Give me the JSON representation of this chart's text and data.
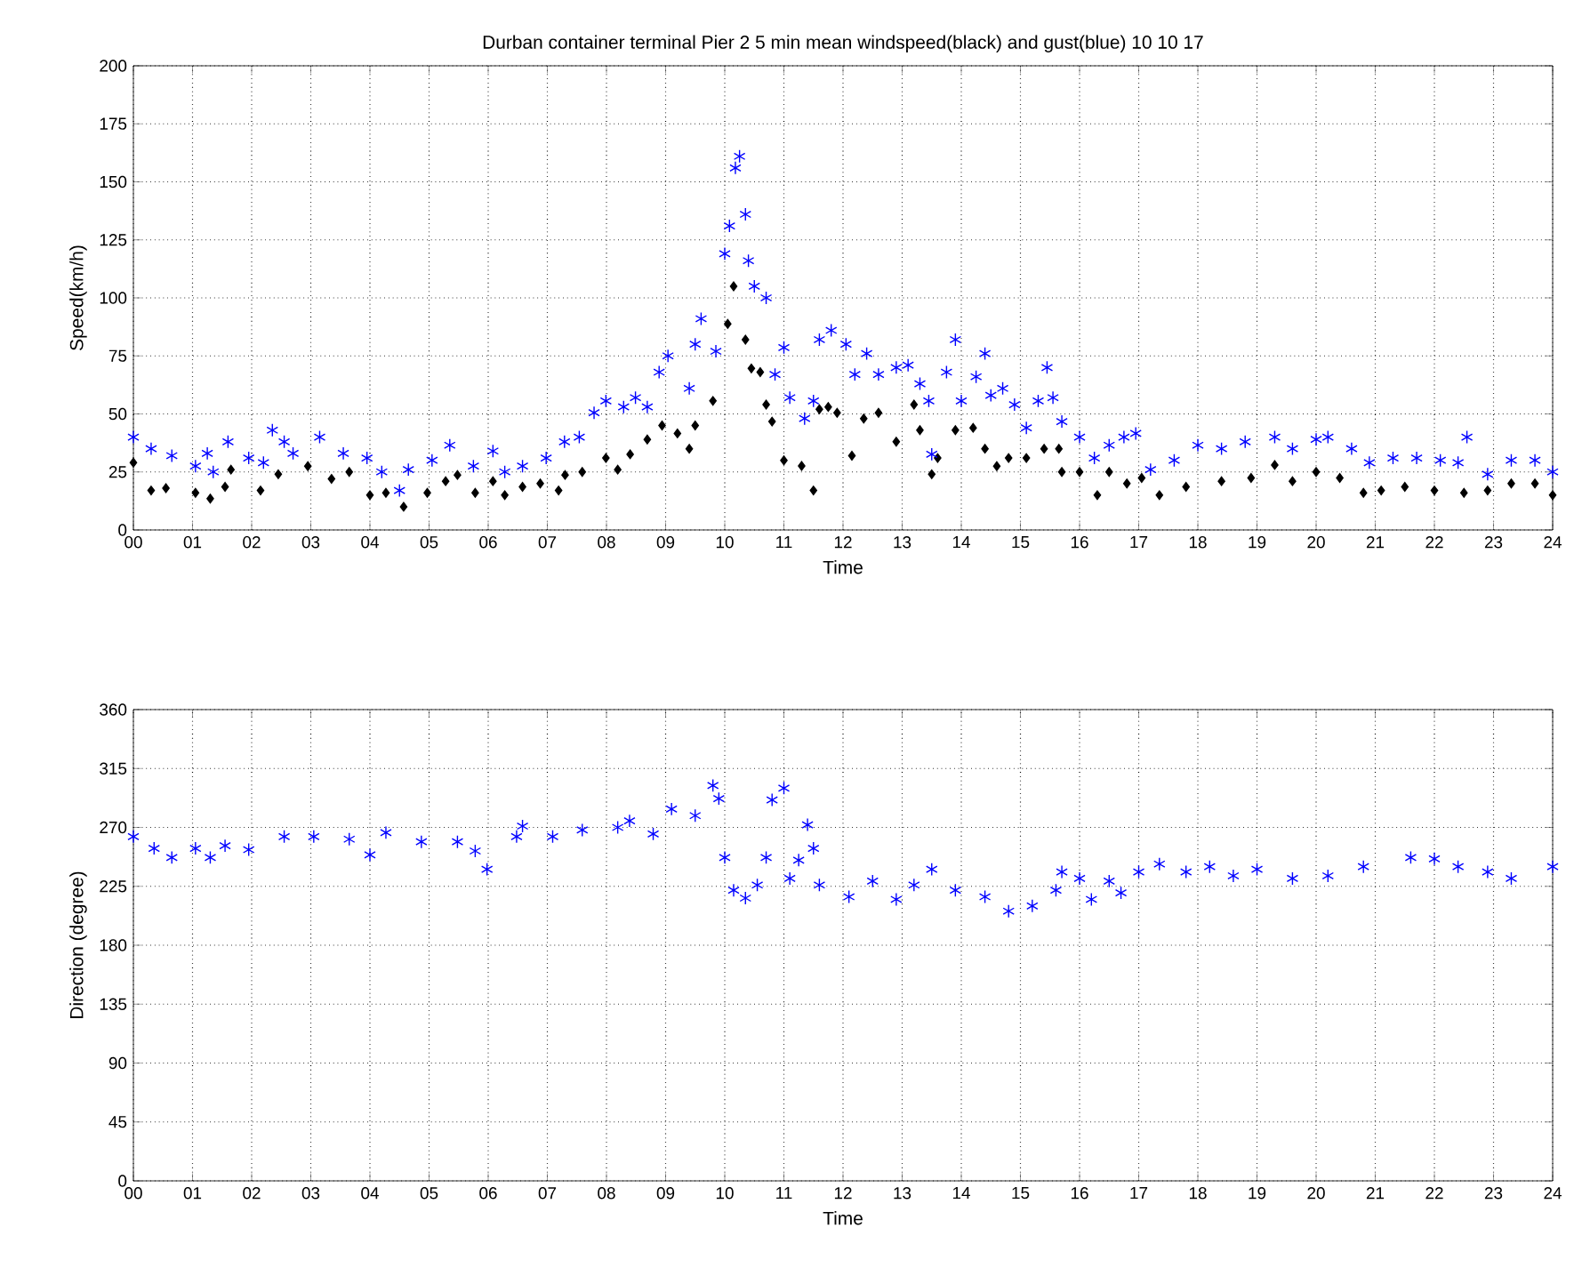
{
  "chart_data": [
    {
      "type": "scatter",
      "title": "Durban container terminal Pier 2 5 min mean windspeed(black) and gust(blue) 10 10 17",
      "xlabel": "Time",
      "ylabel": "Speed(km/h)",
      "xlim": [
        0,
        24
      ],
      "ylim": [
        0,
        200
      ],
      "grid": true,
      "xticks": [
        {
          "value": 0,
          "label": "00"
        },
        {
          "value": 1,
          "label": "01"
        },
        {
          "value": 2,
          "label": "02"
        },
        {
          "value": 3,
          "label": "03"
        },
        {
          "value": 4,
          "label": "04"
        },
        {
          "value": 5,
          "label": "05"
        },
        {
          "value": 6,
          "label": "06"
        },
        {
          "value": 7,
          "label": "07"
        },
        {
          "value": 8,
          "label": "08"
        },
        {
          "value": 9,
          "label": "09"
        },
        {
          "value": 10,
          "label": "10"
        },
        {
          "value": 11,
          "label": "11"
        },
        {
          "value": 12,
          "label": "12"
        },
        {
          "value": 13,
          "label": "13"
        },
        {
          "value": 14,
          "label": "14"
        },
        {
          "value": 15,
          "label": "15"
        },
        {
          "value": 16,
          "label": "16"
        },
        {
          "value": 17,
          "label": "17"
        },
        {
          "value": 18,
          "label": "18"
        },
        {
          "value": 19,
          "label": "19"
        },
        {
          "value": 20,
          "label": "20"
        },
        {
          "value": 21,
          "label": "21"
        },
        {
          "value": 22,
          "label": "22"
        },
        {
          "value": 23,
          "label": "23"
        },
        {
          "value": 24,
          "label": "24"
        }
      ],
      "yticks": [
        0,
        25,
        50,
        75,
        100,
        125,
        150,
        175,
        200
      ],
      "series": [
        {
          "color": "#000000",
          "marker": "diamond",
          "x": [
            0,
            0.3,
            0.55,
            1.05,
            1.3,
            1.55,
            1.65,
            2.15,
            2.45,
            2.95,
            3.35,
            3.65,
            4.0,
            4.27,
            4.57,
            4.97,
            5.28,
            5.48,
            5.78,
            6.08,
            6.28,
            6.58,
            6.88,
            7.19,
            7.3,
            7.59,
            7.99,
            8.19,
            8.4,
            8.69,
            8.94,
            9.2,
            9.4,
            9.5,
            9.8,
            10.05,
            10.15,
            10.35,
            10.45,
            10.6,
            10.7,
            10.8,
            11.0,
            11.3,
            11.5,
            11.6,
            11.75,
            11.9,
            12.15,
            12.35,
            12.6,
            12.9,
            13.2,
            13.3,
            13.5,
            13.6,
            13.9,
            14.2,
            14.4,
            14.6,
            14.8,
            15.1,
            15.4,
            15.65,
            15.7,
            16.0,
            16.3,
            16.5,
            16.8,
            17.05,
            17.35,
            17.8,
            18.4,
            18.9,
            19.3,
            19.6,
            20.0,
            20.4,
            20.8,
            21.1,
            21.5,
            22.0,
            22.5,
            22.9,
            23.3,
            23.7,
            24.0
          ],
          "values": [
            29,
            17,
            18,
            16,
            13.5,
            18.6,
            26,
            17,
            24,
            27.5,
            22,
            25,
            15,
            16,
            10,
            16,
            21,
            23.7,
            16,
            21,
            15,
            18.6,
            20,
            17,
            23.7,
            25,
            31,
            26,
            32.6,
            39,
            45,
            41.6,
            35,
            45,
            55.6,
            88.8,
            105,
            82,
            69.6,
            68,
            54,
            46.7,
            30,
            27.6,
            17,
            52,
            53,
            50.5,
            32,
            48,
            50.5,
            38,
            54,
            43,
            24,
            31,
            43,
            44,
            35,
            27.5,
            31,
            31,
            35,
            35,
            25,
            25,
            15,
            25,
            20,
            22.4,
            15,
            18.6,
            21,
            22.4,
            28,
            21,
            25,
            22.4,
            16,
            17,
            18.6,
            17,
            16,
            17,
            20,
            20,
            15
          ]
        },
        {
          "color": "#0000ff",
          "marker": "cross",
          "x": [
            0,
            0.3,
            0.65,
            1.05,
            1.25,
            1.35,
            1.6,
            1.95,
            2.2,
            2.35,
            2.55,
            2.7,
            3.15,
            3.55,
            3.95,
            4.2,
            4.5,
            4.65,
            5.05,
            5.35,
            5.75,
            6.08,
            6.28,
            6.58,
            6.98,
            7.29,
            7.54,
            7.79,
            7.99,
            8.29,
            8.49,
            8.69,
            8.89,
            9.04,
            9.4,
            9.5,
            9.6,
            9.85,
            10.0,
            10.08,
            10.18,
            10.25,
            10.35,
            10.4,
            10.5,
            10.7,
            10.85,
            11.0,
            11.1,
            11.35,
            11.5,
            11.6,
            11.8,
            12.05,
            12.2,
            12.4,
            12.6,
            12.9,
            13.1,
            13.3,
            13.45,
            13.5,
            13.75,
            13.9,
            14.0,
            14.25,
            14.4,
            14.5,
            14.7,
            14.9,
            15.1,
            15.3,
            15.45,
            15.55,
            15.7,
            16.0,
            16.25,
            16.5,
            16.75,
            16.95,
            17.2,
            17.6,
            18.0,
            18.4,
            18.8,
            19.3,
            19.6,
            20.0,
            20.2,
            20.6,
            20.9,
            21.3,
            21.7,
            22.1,
            22.4,
            22.55,
            22.9,
            23.3,
            23.7,
            24.0
          ],
          "values": [
            40,
            35,
            32,
            27.5,
            33,
            25,
            38,
            31,
            29,
            43,
            38,
            33,
            40,
            33,
            31,
            25,
            17,
            26,
            30,
            36.5,
            27.5,
            34,
            25,
            27.5,
            31,
            38,
            40,
            50.5,
            55.6,
            53,
            57,
            53,
            68,
            75,
            61,
            80,
            91,
            77,
            119,
            131,
            156,
            161,
            136,
            116,
            105,
            100,
            67,
            78.6,
            57,
            48,
            55.6,
            82,
            86,
            80,
            67,
            76,
            67,
            70,
            71,
            63,
            55.6,
            32.6,
            68,
            82,
            55.6,
            66,
            76,
            58,
            61,
            54,
            44,
            55.6,
            70,
            57,
            46.7,
            40,
            31,
            36.5,
            40,
            41.6,
            26,
            30,
            36.5,
            35,
            38,
            40,
            35,
            39,
            40,
            35,
            29,
            31,
            31,
            30,
            29,
            40,
            24,
            30,
            30,
            25
          ]
        }
      ]
    },
    {
      "type": "scatter",
      "xlabel": "Time",
      "ylabel": "Direction (degree)",
      "xlim": [
        0,
        24
      ],
      "ylim": [
        0,
        360
      ],
      "grid": true,
      "xticks": [
        {
          "value": 0,
          "label": "00"
        },
        {
          "value": 1,
          "label": "01"
        },
        {
          "value": 2,
          "label": "02"
        },
        {
          "value": 3,
          "label": "03"
        },
        {
          "value": 4,
          "label": "04"
        },
        {
          "value": 5,
          "label": "05"
        },
        {
          "value": 6,
          "label": "06"
        },
        {
          "value": 7,
          "label": "07"
        },
        {
          "value": 8,
          "label": "08"
        },
        {
          "value": 9,
          "label": "09"
        },
        {
          "value": 10,
          "label": "10"
        },
        {
          "value": 11,
          "label": "11"
        },
        {
          "value": 12,
          "label": "12"
        },
        {
          "value": 13,
          "label": "13"
        },
        {
          "value": 14,
          "label": "14"
        },
        {
          "value": 15,
          "label": "15"
        },
        {
          "value": 16,
          "label": "16"
        },
        {
          "value": 17,
          "label": "17"
        },
        {
          "value": 18,
          "label": "18"
        },
        {
          "value": 19,
          "label": "19"
        },
        {
          "value": 20,
          "label": "20"
        },
        {
          "value": 21,
          "label": "21"
        },
        {
          "value": 22,
          "label": "22"
        },
        {
          "value": 23,
          "label": "23"
        },
        {
          "value": 24,
          "label": "24"
        }
      ],
      "yticks": [
        0,
        45,
        90,
        135,
        180,
        225,
        270,
        315,
        360
      ],
      "series": [
        {
          "color": "#0000ff",
          "marker": "cross",
          "x": [
            0,
            0.35,
            0.65,
            1.05,
            1.3,
            1.55,
            1.95,
            2.55,
            3.05,
            3.65,
            4.0,
            4.27,
            4.87,
            5.48,
            5.78,
            5.98,
            6.48,
            6.58,
            7.09,
            7.59,
            8.19,
            8.39,
            8.79,
            9.1,
            9.5,
            9.8,
            9.9,
            10.0,
            10.15,
            10.35,
            10.55,
            10.7,
            10.8,
            11.0,
            11.1,
            11.25,
            11.4,
            11.5,
            11.6,
            12.1,
            12.5,
            12.9,
            13.2,
            13.5,
            13.9,
            14.4,
            14.8,
            15.2,
            15.6,
            15.7,
            16.0,
            16.2,
            16.5,
            16.7,
            17.0,
            17.35,
            17.8,
            18.2,
            18.6,
            19.0,
            19.6,
            20.2,
            20.8,
            21.6,
            22.0,
            22.4,
            22.9,
            23.3,
            24.0
          ],
          "values": [
            263,
            254,
            247,
            254,
            247,
            256,
            253,
            263,
            263,
            261,
            249,
            266,
            259,
            259,
            252,
            238,
            263,
            271,
            263,
            268,
            270,
            275,
            265,
            284,
            279,
            302,
            292,
            247,
            222,
            216,
            226,
            247,
            291,
            300,
            231,
            245,
            272,
            254,
            226,
            217,
            229,
            215,
            226,
            238,
            222,
            217,
            206,
            210,
            222,
            236,
            231,
            215,
            229,
            220,
            236,
            242,
            236,
            240,
            233,
            238,
            231,
            233,
            240,
            247,
            246,
            240,
            236,
            231,
            240
          ]
        }
      ]
    }
  ]
}
